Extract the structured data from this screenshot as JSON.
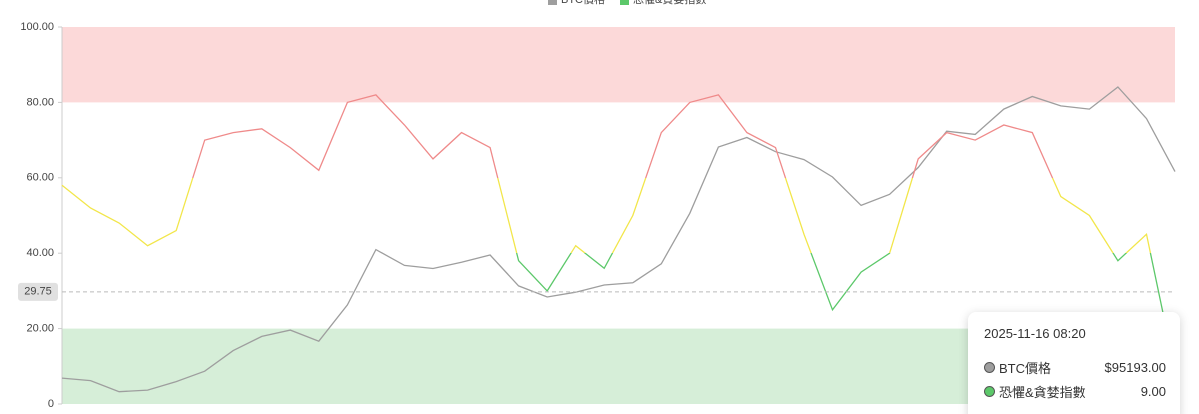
{
  "chart_data": {
    "type": "line",
    "ylim": [
      0,
      100
    ],
    "yticks": [
      0,
      {
        "value": 20,
        "label": "20.00"
      },
      {
        "value": 40,
        "label": "40.00"
      },
      {
        "value": 60,
        "label": "60.00"
      },
      {
        "value": 80,
        "label": "80.00"
      },
      {
        "value": 100,
        "label": "100.00"
      }
    ],
    "y2lim": [
      21600,
      141000
    ],
    "bands": [
      {
        "from": 80,
        "to": 100,
        "color": "#fcd9d9"
      },
      {
        "from": 0,
        "to": 20,
        "color": "#d6eed8"
      }
    ],
    "line_zones": [
      {
        "from": 60,
        "to": 100,
        "color": "#ef8a8a"
      },
      {
        "from": 40,
        "to": 60,
        "color": "#f2e64a"
      },
      {
        "from": 0,
        "to": 40,
        "color": "#5cc86a"
      }
    ],
    "series": [
      {
        "name": "BTC價格",
        "color": "#9e9e9e",
        "axis": "y2",
        "values": [
          29800,
          29000,
          25500,
          26000,
          28700,
          32000,
          38500,
          43000,
          45000,
          41500,
          53000,
          70500,
          65500,
          64500,
          66500,
          68800,
          59000,
          55500,
          57000,
          59300,
          60000,
          66000,
          82000,
          103000,
          106000,
          101500,
          99000,
          93500,
          84500,
          88000,
          96500,
          108000,
          107000,
          115000,
          119000,
          116000,
          115000,
          122000,
          112000,
          95193
        ]
      },
      {
        "name": "恐懼&貪婪指數",
        "color": "#5cc86a",
        "values": [
          58,
          52,
          48,
          42,
          46,
          70,
          72,
          73,
          68,
          62,
          80,
          82,
          74,
          65,
          72,
          68,
          38,
          30,
          42,
          36,
          50,
          72,
          80,
          82,
          72,
          68,
          45,
          25,
          35,
          40,
          65,
          72,
          70,
          74,
          72,
          55,
          50,
          38,
          45,
          9
        ]
      }
    ],
    "crosshair": 29.75,
    "tooltip": {
      "date": "2025-11-16 08:20",
      "values": [
        "$95193.00",
        "9.00"
      ]
    }
  }
}
